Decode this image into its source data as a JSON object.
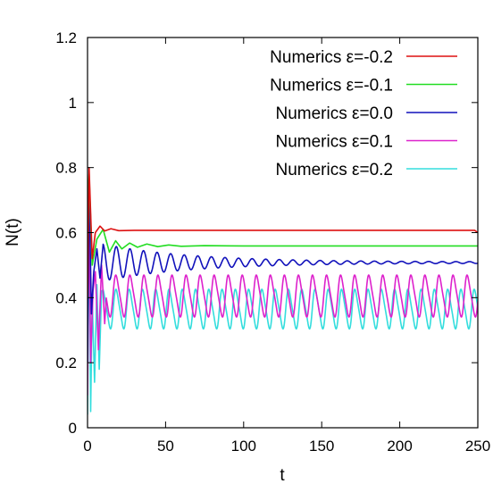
{
  "chart_data": {
    "type": "line",
    "title": "",
    "xlabel": "t",
    "ylabel": "N(t)",
    "xlim": [
      0,
      250
    ],
    "ylim": [
      0,
      1.2
    ],
    "xticks": [
      0,
      50,
      100,
      150,
      200,
      250
    ],
    "yticks": [
      0,
      0.2,
      0.4,
      0.6,
      0.8,
      1,
      1.2
    ],
    "xtick_labels": [
      "0",
      "50",
      "100",
      "150",
      "200",
      "250"
    ],
    "ytick_labels": [
      "0",
      "0.2",
      "0.4",
      "0.6",
      "0.8",
      "1",
      "1.2"
    ],
    "grid": false,
    "legend_position": "top-right",
    "series": [
      {
        "name": "Numerics  ε=-0.2",
        "color": "#dd1111",
        "points": [
          [
            0,
            0.4
          ],
          [
            1,
            0.8
          ],
          [
            3,
            0.52
          ],
          [
            5,
            0.6
          ],
          [
            8,
            0.62
          ],
          [
            11,
            0.605
          ],
          [
            15,
            0.612
          ],
          [
            20,
            0.606
          ],
          [
            30,
            0.607
          ],
          [
            50,
            0.607
          ],
          [
            100,
            0.607
          ],
          [
            150,
            0.607
          ],
          [
            200,
            0.607
          ],
          [
            248,
            0.607
          ],
          [
            250,
            0.6
          ]
        ]
      },
      {
        "name": "Numerics  ε=-0.1",
        "color": "#22dd22",
        "points": [
          [
            0,
            0.7
          ],
          [
            1,
            0.78
          ],
          [
            3,
            0.5
          ],
          [
            6,
            0.58
          ],
          [
            10,
            0.61
          ],
          [
            14,
            0.54
          ],
          [
            18,
            0.575
          ],
          [
            22,
            0.55
          ],
          [
            27,
            0.568
          ],
          [
            32,
            0.555
          ],
          [
            38,
            0.565
          ],
          [
            45,
            0.557
          ],
          [
            52,
            0.562
          ],
          [
            60,
            0.558
          ],
          [
            75,
            0.56
          ],
          [
            100,
            0.559
          ],
          [
            150,
            0.559
          ],
          [
            200,
            0.559
          ],
          [
            250,
            0.559
          ]
        ]
      },
      {
        "name": "Numerics  ε=0.0",
        "color": "#1111bb",
        "damped": {
          "base": 0.508,
          "amp0": 0.055,
          "decay": 0.018,
          "period": 8.7,
          "phase": 0.8,
          "start": 10
        },
        "points": [
          [
            0,
            0.2
          ],
          [
            1,
            0.75
          ],
          [
            2.5,
            0.35
          ],
          [
            4,
            0.48
          ],
          [
            6,
            0.55
          ],
          [
            8,
            0.46
          ]
        ]
      },
      {
        "name": "Numerics  ε=0.1",
        "color": "#dd22cc",
        "periodic": {
          "center": 0.405,
          "amp": 0.072,
          "period": 9.0,
          "phase": 1.2,
          "start": 12
        },
        "points": [
          [
            0,
            0.1
          ],
          [
            1,
            0.72
          ],
          [
            2,
            0.2
          ],
          [
            3.5,
            0.42
          ],
          [
            5,
            0.48
          ],
          [
            7,
            0.24
          ],
          [
            9,
            0.5
          ],
          [
            11,
            0.32
          ]
        ]
      },
      {
        "name": "Numerics  ε=0.2",
        "color": "#33dddd",
        "periodic": {
          "center": 0.365,
          "amp": 0.068,
          "period": 8.5,
          "phase": 0.4,
          "start": 10
        },
        "points": [
          [
            0,
            0.04
          ],
          [
            1,
            0.7
          ],
          [
            2,
            0.05
          ],
          [
            3,
            0.4
          ],
          [
            4.5,
            0.14
          ],
          [
            6,
            0.44
          ],
          [
            7.5,
            0.18
          ],
          [
            9,
            0.42
          ]
        ]
      }
    ]
  }
}
